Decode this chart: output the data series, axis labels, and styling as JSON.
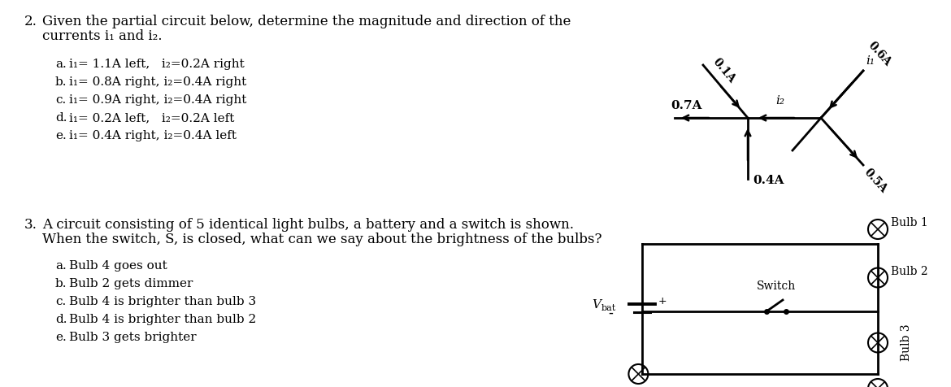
{
  "background_color": "#ffffff",
  "q2": {
    "number": "2.",
    "question_line1": "Given the partial circuit below, determine the magnitude and direction of the",
    "question_line2": "currents i₁ and i₂.",
    "options": [
      [
        "a.",
        "i₁= 1.1A left,   i₂=0.2A right"
      ],
      [
        "b.",
        "i₁= 0.8A right, i₂=0.4A right"
      ],
      [
        "c.",
        "i₁= 0.9A right, i₂=0.4A right"
      ],
      [
        "d.",
        "i₁= 0.2A left,   i₂=0.2A left"
      ],
      [
        "e.",
        "i₁= 0.4A right, i₂=0.4A left"
      ]
    ]
  },
  "q3": {
    "number": "3.",
    "question_line1": "A circuit consisting of 5 identical light bulbs, a battery and a switch is shown.",
    "question_line2": "When the switch, S, is closed, what can we say about the brightness of the bulbs?",
    "options": [
      [
        "a.",
        "Bulb 4 goes out"
      ],
      [
        "b.",
        "Bulb 2 gets dimmer"
      ],
      [
        "c.",
        "Bulb 4 is brighter than bulb 3"
      ],
      [
        "d.",
        "Bulb 4 is brighter than bulb 2"
      ],
      [
        "e.",
        "Bulb 3 gets brighter"
      ]
    ]
  }
}
